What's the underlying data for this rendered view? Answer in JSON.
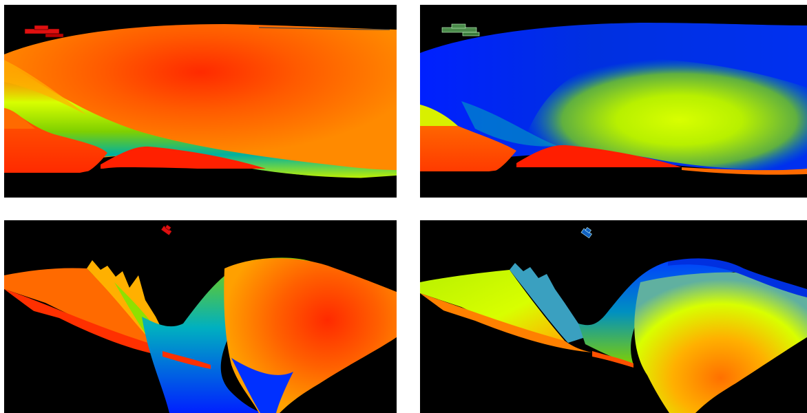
{
  "figure": {
    "panels": [
      {
        "id": "top-left",
        "view": "side",
        "colormap": "mostly-warm",
        "vessel_color": "#e01010"
      },
      {
        "id": "top-right",
        "view": "side",
        "colormap": "mostly-cool",
        "vessel_color": "#4a8a4a"
      },
      {
        "id": "bottom-left",
        "view": "oblique",
        "colormap": "mostly-warm",
        "vessel_color": "#e01010"
      },
      {
        "id": "bottom-right",
        "view": "oblique",
        "colormap": "mostly-cool",
        "vessel_color": "#1060c0"
      }
    ],
    "colors": {
      "background": "#000000",
      "red": "#ff2a00",
      "orange": "#ff7a00",
      "yellow": "#d8ff00",
      "green": "#7fd000",
      "cyan": "#00b0b0",
      "blue": "#0020ff"
    }
  }
}
